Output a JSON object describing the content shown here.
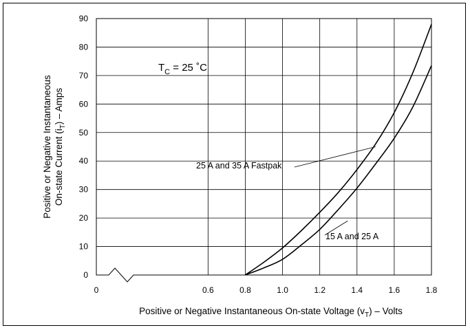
{
  "chart_data": {
    "type": "line",
    "xlabel": {
      "pre": "Positive or Negative Instantaneous On-state Voltage (v",
      "sub": "T",
      "post": ") – Volts"
    },
    "ylabel": {
      "line1": "Positive or Negative Instantaneous",
      "line2_pre": "On-state Current (i",
      "line2_sub": "T",
      "line2_post": ") – Amps"
    },
    "xlim": [
      0,
      1.8
    ],
    "ylim": [
      0,
      90
    ],
    "x_ticks": [
      "0",
      "0.6",
      "0.8",
      "1.0",
      "1.2",
      "1.4",
      "1.6",
      "1.8"
    ],
    "y_ticks": [
      "0",
      "10",
      "20",
      "30",
      "40",
      "50",
      "60",
      "70",
      "80",
      "90"
    ],
    "axis_break": true,
    "grid": true,
    "condition": {
      "pre": "T",
      "sub": "C",
      "post": " = 25 ˚C"
    },
    "series": [
      {
        "name": "25 A and 35 A Fastpak",
        "x": [
          0.8,
          0.9,
          1.0,
          1.1,
          1.2,
          1.3,
          1.4,
          1.5,
          1.6,
          1.7,
          1.8
        ],
        "y": [
          0,
          4.5,
          9.5,
          15.5,
          22,
          29,
          37,
          46,
          57,
          71,
          88
        ]
      },
      {
        "name": "15 A and 25 A",
        "x": [
          0.8,
          0.9,
          1.0,
          1.1,
          1.2,
          1.3,
          1.4,
          1.5,
          1.6,
          1.7,
          1.8
        ],
        "y": [
          0,
          2.5,
          5.5,
          10.5,
          16,
          23,
          30.5,
          39,
          48,
          59,
          73.5
        ]
      }
    ]
  }
}
